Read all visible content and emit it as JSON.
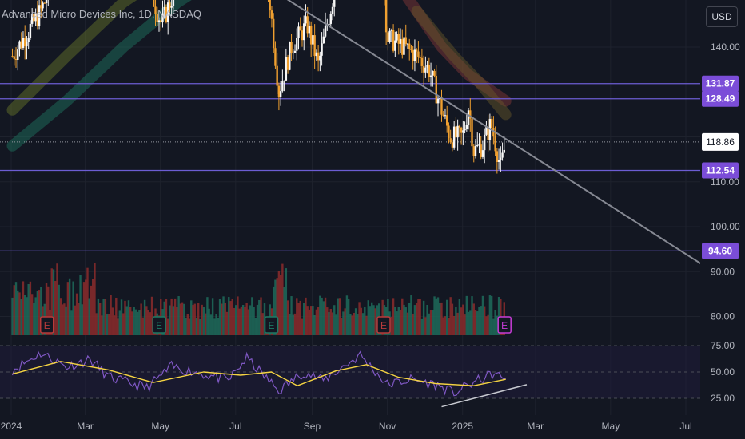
{
  "title": "Advanced Micro Devices Inc, 1D, NASDAQ",
  "currency_label": "USD",
  "colors": {
    "background": "#131722",
    "grid": "#1e222d",
    "candle_up": "#f7f7f7",
    "candle_down": "#f0a030",
    "level_line": "#6c5dd3",
    "level_label": "#7b4dd8",
    "trendline": "#868993",
    "rsi_line": "#7e57c2",
    "rsi_ma": "#f5d442",
    "volume_up": "#1f6b5a",
    "volume_down": "#8c2b2b",
    "earnings": "#b83b3b",
    "earnings_green": "#1e7a64",
    "earnings_purple": "#c83cd8",
    "axis_text": "#b2b5be"
  },
  "chart_data": {
    "type": "candlestick",
    "price_axis": {
      "range": [
        84,
        157
      ],
      "ticks": [
        "140.00",
        "110.00",
        "100.00",
        "90.00",
        "80.00"
      ],
      "tick_values": [
        140,
        110,
        100,
        90,
        80
      ],
      "hidden_tick_value": 120
    },
    "time_axis": {
      "labels": [
        "2024",
        "Mar",
        "May",
        "Jul",
        "Sep",
        "Nov",
        "2025",
        "Mar",
        "May",
        "Jul"
      ],
      "dates": [
        "2024-01-01",
        "2024-03-01",
        "2024-05-01",
        "2024-07-01",
        "2024-09-01",
        "2024-11-01",
        "2025-01-01",
        "2025-03-01",
        "2025-05-01",
        "2025-07-01"
      ]
    },
    "price_range": [
      "2024-01-02",
      "2025-02-05"
    ],
    "last_price": {
      "value": 118.86,
      "label": "118.86"
    },
    "horizontal_levels": [
      {
        "value": 131.87,
        "label": "131.87"
      },
      {
        "value": 128.49,
        "label": "128.49"
      },
      {
        "value": 112.54,
        "label": "112.54"
      },
      {
        "value": 94.6,
        "label": "94.60"
      }
    ],
    "trendline": {
      "start": {
        "date": "2024-05-22",
        "value": 165
      },
      "end": {
        "date": "2025-08-15",
        "value": 86
      }
    },
    "price_path": [
      {
        "date": "2024-01-02",
        "value": 138
      },
      {
        "date": "2024-01-25",
        "value": 148
      },
      {
        "date": "2024-02-20",
        "value": 165
      },
      {
        "date": "2024-03-10",
        "value": 180
      },
      {
        "date": "2024-04-20",
        "value": 155
      },
      {
        "date": "2024-05-02",
        "value": 145
      },
      {
        "date": "2024-05-25",
        "value": 162
      },
      {
        "date": "2024-06-20",
        "value": 160
      },
      {
        "date": "2024-07-15",
        "value": 170
      },
      {
        "date": "2024-07-28",
        "value": 152
      },
      {
        "date": "2024-08-05",
        "value": 130
      },
      {
        "date": "2024-08-15",
        "value": 140
      },
      {
        "date": "2024-08-28",
        "value": 145
      },
      {
        "date": "2024-09-06",
        "value": 136
      },
      {
        "date": "2024-09-25",
        "value": 160
      },
      {
        "date": "2024-10-10",
        "value": 168
      },
      {
        "date": "2024-10-28",
        "value": 158
      },
      {
        "date": "2024-11-01",
        "value": 142
      },
      {
        "date": "2024-11-15",
        "value": 140
      },
      {
        "date": "2024-11-25",
        "value": 138
      },
      {
        "date": "2024-12-05",
        "value": 135
      },
      {
        "date": "2024-12-15",
        "value": 126
      },
      {
        "date": "2024-12-22",
        "value": 120
      },
      {
        "date": "2025-01-01",
        "value": 120
      },
      {
        "date": "2025-01-06",
        "value": 127
      },
      {
        "date": "2025-01-10",
        "value": 117
      },
      {
        "date": "2025-01-17",
        "value": 118
      },
      {
        "date": "2025-01-24",
        "value": 123
      },
      {
        "date": "2025-02-01",
        "value": 113
      },
      {
        "date": "2025-02-05",
        "value": 118.86
      }
    ],
    "moving_average_bands": [
      {
        "color": "#1e7a64",
        "points": [
          {
            "date": "2024-01-02",
            "value": 118
          },
          {
            "date": "2024-02-15",
            "value": 128
          },
          {
            "date": "2024-04-01",
            "value": 140
          },
          {
            "date": "2024-05-15",
            "value": 150
          },
          {
            "date": "2024-06-30",
            "value": 158
          }
        ]
      },
      {
        "color": "#6b7a2a",
        "points": [
          {
            "date": "2024-01-02",
            "value": 126
          },
          {
            "date": "2024-02-15",
            "value": 138
          },
          {
            "date": "2024-04-01",
            "value": 150
          },
          {
            "date": "2024-05-15",
            "value": 158
          }
        ]
      },
      {
        "color": "#8a3a3a",
        "points": [
          {
            "date": "2024-07-25",
            "value": 162
          },
          {
            "date": "2024-08-20",
            "value": 152
          },
          {
            "date": "2024-09-15",
            "value": 158
          },
          {
            "date": "2024-10-10",
            "value": 162
          }
        ]
      },
      {
        "color": "#8a3a3a",
        "points": [
          {
            "date": "2024-11-15",
            "value": 152
          },
          {
            "date": "2024-12-15",
            "value": 140
          },
          {
            "date": "2025-01-05",
            "value": 134
          },
          {
            "date": "2025-02-05",
            "value": 128
          }
        ]
      },
      {
        "color": "#6b5a2a",
        "points": [
          {
            "date": "2024-11-25",
            "value": 148
          },
          {
            "date": "2024-12-25",
            "value": 138
          },
          {
            "date": "2025-01-15",
            "value": 132
          },
          {
            "date": "2025-02-05",
            "value": 125
          }
        ]
      }
    ],
    "earnings": [
      {
        "date": "2024-01-30",
        "label": "E",
        "color": "red"
      },
      {
        "date": "2024-04-30",
        "label": "E",
        "color": "green"
      },
      {
        "date": "2024-07-30",
        "label": "E",
        "color": "green"
      },
      {
        "date": "2024-10-29",
        "label": "E",
        "color": "red"
      },
      {
        "date": "2025-02-04",
        "label": "E",
        "color": "purple"
      }
    ],
    "rsi": {
      "levels": [
        {
          "value": 75,
          "label": "75.00"
        },
        {
          "value": 50,
          "label": "50.00"
        },
        {
          "value": 25,
          "label": "25.00"
        }
      ],
      "line_points": [
        {
          "date": "2024-01-02",
          "value": 52
        },
        {
          "date": "2024-01-25",
          "value": 68
        },
        {
          "date": "2024-02-15",
          "value": 55
        },
        {
          "date": "2024-03-05",
          "value": 62
        },
        {
          "date": "2024-03-20",
          "value": 45
        },
        {
          "date": "2024-04-20",
          "value": 35
        },
        {
          "date": "2024-05-10",
          "value": 55
        },
        {
          "date": "2024-06-05",
          "value": 48
        },
        {
          "date": "2024-06-25",
          "value": 42
        },
        {
          "date": "2024-07-10",
          "value": 63
        },
        {
          "date": "2024-08-05",
          "value": 32
        },
        {
          "date": "2024-08-25",
          "value": 50
        },
        {
          "date": "2024-09-10",
          "value": 42
        },
        {
          "date": "2024-10-10",
          "value": 66
        },
        {
          "date": "2024-11-01",
          "value": 38
        },
        {
          "date": "2024-11-20",
          "value": 43
        },
        {
          "date": "2024-12-10",
          "value": 38
        },
        {
          "date": "2024-12-25",
          "value": 30
        },
        {
          "date": "2025-01-10",
          "value": 40
        },
        {
          "date": "2025-01-25",
          "value": 48
        },
        {
          "date": "2025-02-05",
          "value": 44
        }
      ],
      "ma_points": [
        {
          "date": "2024-01-02",
          "value": 48
        },
        {
          "date": "2024-02-10",
          "value": 60
        },
        {
          "date": "2024-03-20",
          "value": 52
        },
        {
          "date": "2024-04-25",
          "value": 40
        },
        {
          "date": "2024-06-05",
          "value": 50
        },
        {
          "date": "2024-07-05",
          "value": 47
        },
        {
          "date": "2024-07-30",
          "value": 50
        },
        {
          "date": "2024-08-20",
          "value": 37
        },
        {
          "date": "2024-09-20",
          "value": 51
        },
        {
          "date": "2024-10-15",
          "value": 57
        },
        {
          "date": "2024-11-10",
          "value": 45
        },
        {
          "date": "2024-12-10",
          "value": 39
        },
        {
          "date": "2025-01-10",
          "value": 37
        },
        {
          "date": "2025-02-05",
          "value": 43
        }
      ],
      "trendline": {
        "start": {
          "date": "2024-12-15",
          "value": 17
        },
        "end": {
          "date": "2025-02-22",
          "value": 38
        }
      }
    }
  }
}
